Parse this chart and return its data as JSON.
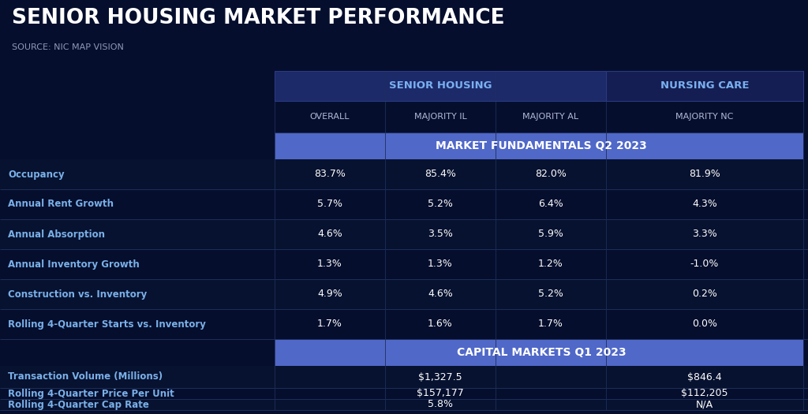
{
  "title": "SENIOR HOUSING MARKET PERFORMANCE",
  "source": "SOURCE: NIC MAP VISION",
  "bg_color": "#050e2d",
  "group_sh_bg": "#1a2560",
  "group_nc_bg": "#141d50",
  "section_bg": "#5068c8",
  "row_odd_bg": "#071230",
  "row_even_bg": "#050e2d",
  "row_label_color": "#7ab0e8",
  "value_color": "#ffffff",
  "col_header_color": "#b0bcd8",
  "divider_color": "#1e2e5a",
  "header_text_color": "#7ab0f0",
  "rows_mf": [
    [
      "Occupancy",
      "83.7%",
      "85.4%",
      "82.0%",
      "81.9%"
    ],
    [
      "Annual Rent Growth",
      "5.7%",
      "5.2%",
      "6.4%",
      "4.3%"
    ],
    [
      "Annual Absorption",
      "4.6%",
      "3.5%",
      "5.9%",
      "3.3%"
    ],
    [
      "Annual Inventory Growth",
      "1.3%",
      "1.3%",
      "1.2%",
      "-1.0%"
    ],
    [
      "Construction vs. Inventory",
      "4.9%",
      "4.6%",
      "5.2%",
      "0.2%"
    ],
    [
      "Rolling 4-Quarter Starts vs. Inventory",
      "1.7%",
      "1.6%",
      "1.7%",
      "0.0%"
    ]
  ],
  "rows_cm": [
    [
      "Transaction Volume (Millions)",
      "",
      "$1,327.5",
      "",
      "$846.4"
    ],
    [
      "Rolling 4-Quarter Price Per Unit",
      "",
      "$157,177",
      "",
      "$112,205"
    ],
    [
      "Rolling 4-Quarter Cap Rate",
      "",
      "5.8%",
      "",
      "N/A"
    ]
  ]
}
